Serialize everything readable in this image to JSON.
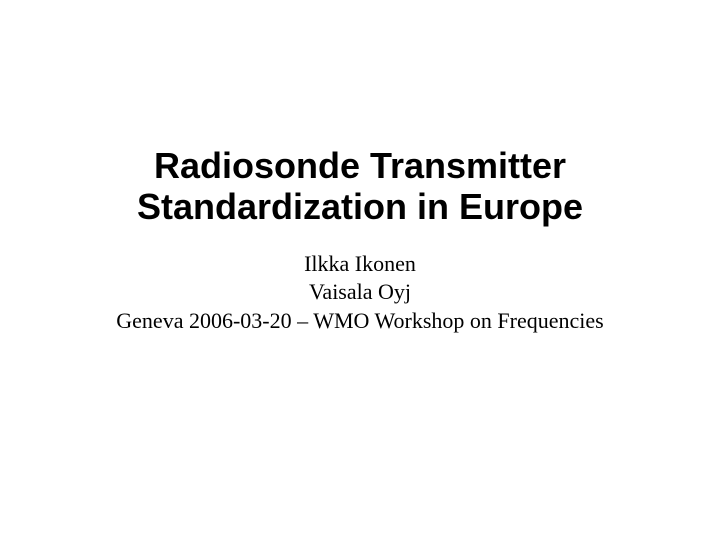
{
  "slide": {
    "title_line1": "Radiosonde Transmitter",
    "title_line2": "Standardization in Europe",
    "author": "Ilkka Ikonen",
    "organization": "Vaisala Oyj",
    "event": "Geneva 2006-03-20 – WMO Workshop on Frequencies",
    "background_color": "#ffffff",
    "text_color": "#000000",
    "title_font": "Arial",
    "title_fontsize": 36,
    "title_fontweight": "bold",
    "subtitle_font": "Times New Roman",
    "subtitle_fontsize": 22
  }
}
